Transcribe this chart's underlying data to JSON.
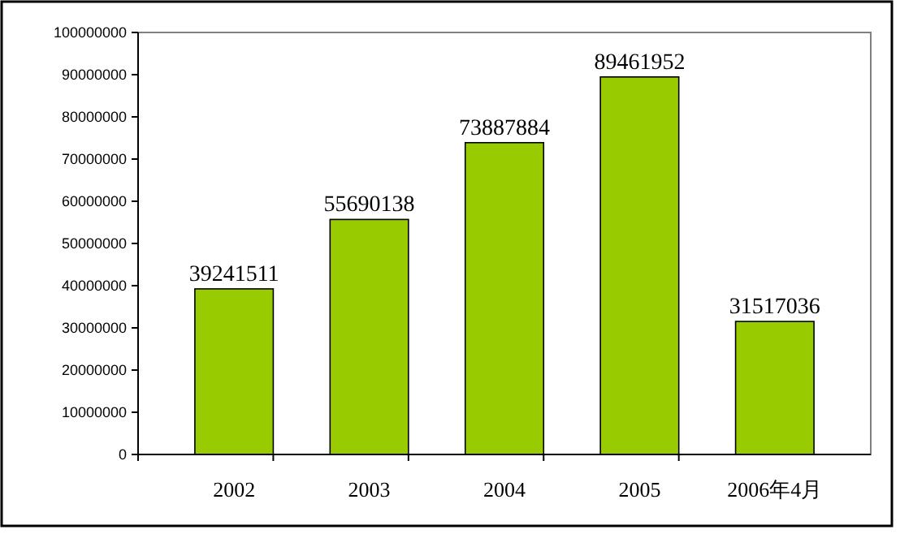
{
  "chart_data": {
    "type": "bar",
    "categories": [
      "2002",
      "2003",
      "2004",
      "2005",
      "2006年4月"
    ],
    "values": [
      39241511,
      55690138,
      73887884,
      89461952,
      31517036
    ],
    "color": "#99cc00",
    "ylim": [
      0,
      100000000
    ],
    "yticks": [
      0,
      10000000,
      20000000,
      30000000,
      40000000,
      50000000,
      60000000,
      70000000,
      80000000,
      90000000,
      100000000
    ],
    "data_labels": true,
    "grid": false
  }
}
